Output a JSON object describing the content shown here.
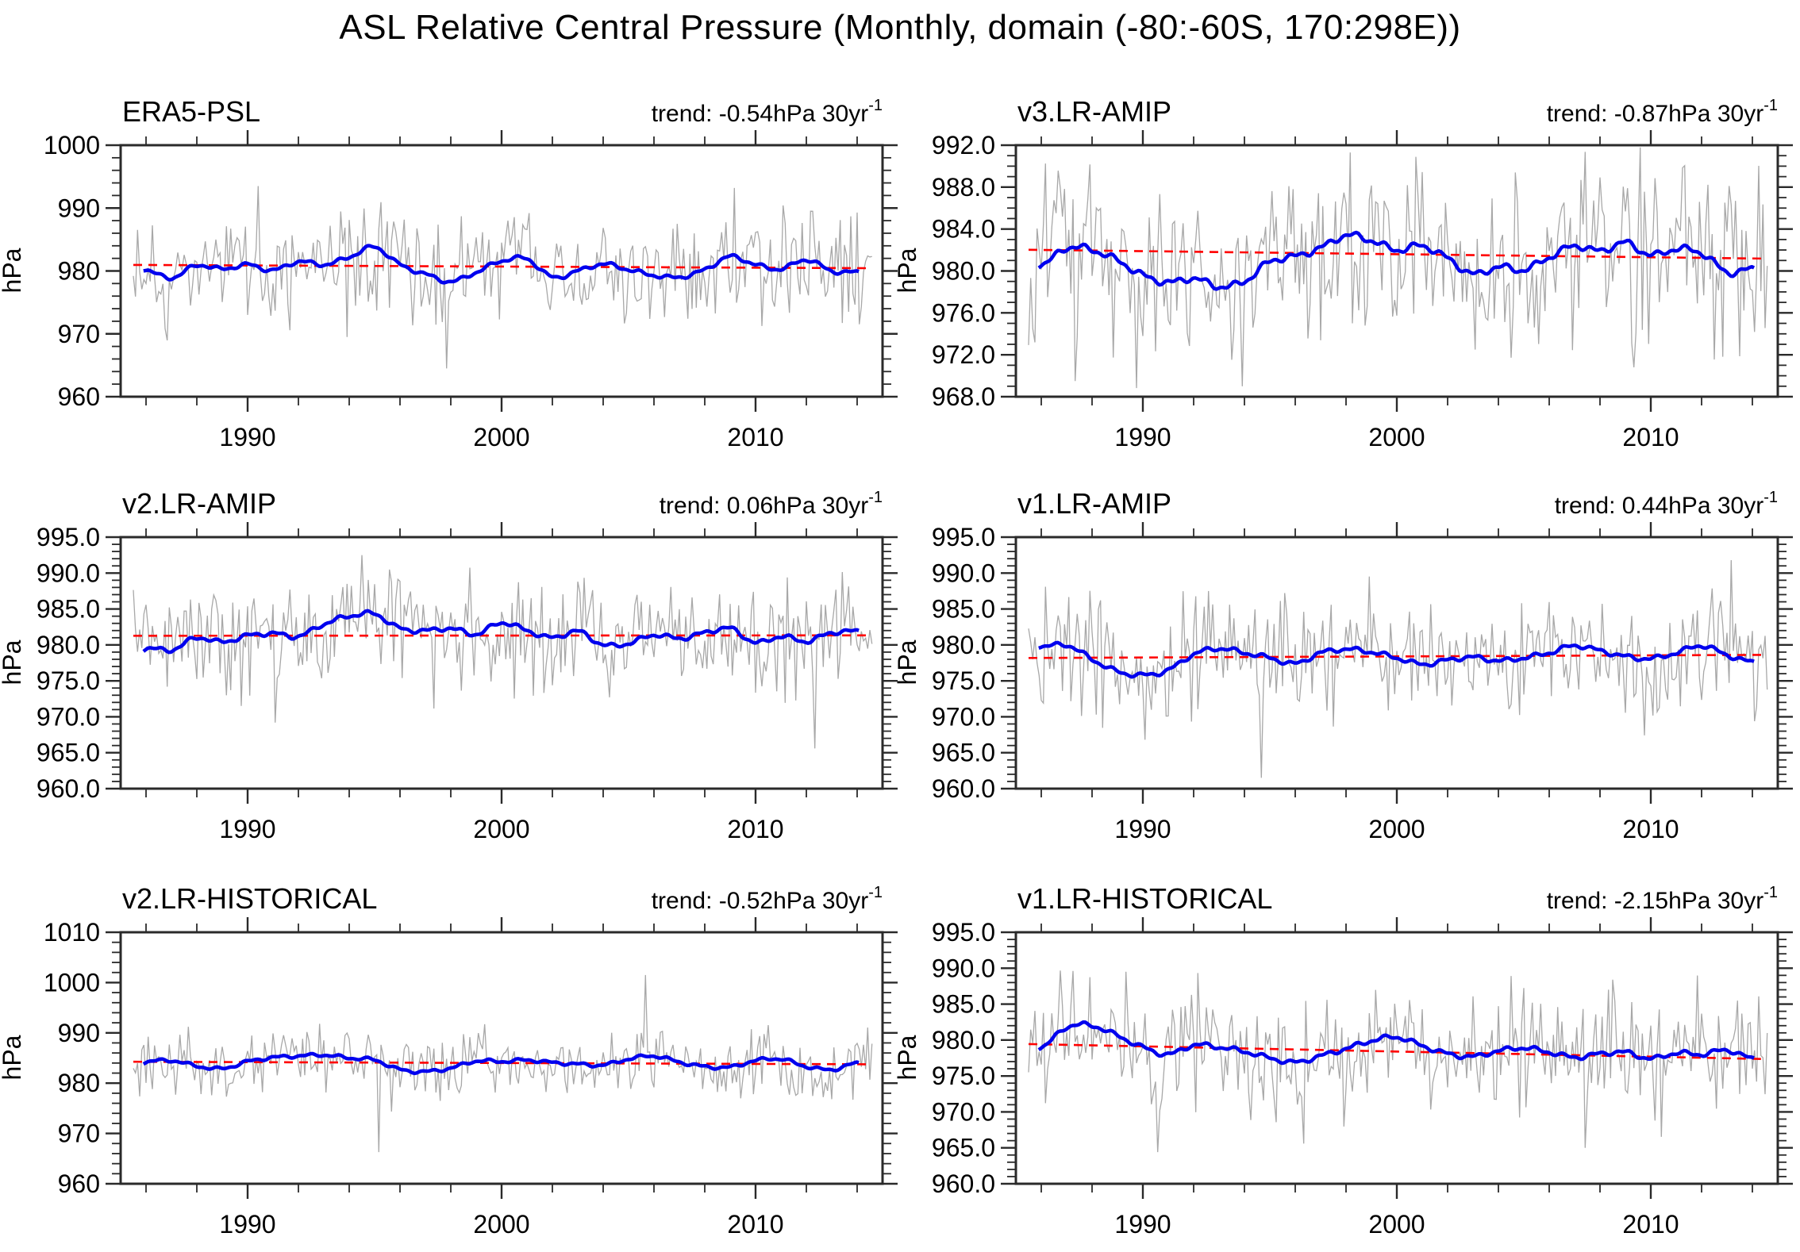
{
  "page": {
    "title": "ASL Relative Central Pressure (Monthly, domain (-80:-60S, 170:298E))"
  },
  "style": {
    "background": "#ffffff",
    "text_color": "#000000",
    "frame_color": "#2a2a2a",
    "monthly_color": "#a8a8a8",
    "smoothed_color": "#0000ee",
    "trendline_color": "#ff0000"
  },
  "chart_data": [
    {
      "type": "line",
      "title": "ERA5-PSL",
      "trend_text": "trend: -0.54hPa 30yr",
      "trend_exp": "-1",
      "trend_hpa_per_30yr": -0.54,
      "ylabel": "hPa",
      "xlabel": "",
      "grid": false,
      "legend_position": "none",
      "xlim": [
        1985,
        2015
      ],
      "xtick_vals": [
        1990,
        2000,
        2010
      ],
      "xtick_labels": [
        "1990",
        "2000",
        "2010"
      ],
      "xtick_minor_step": 2,
      "ylim": [
        960,
        1000
      ],
      "ytick_vals": [
        960,
        970,
        980,
        990,
        1000
      ],
      "ytick_labels": [
        "960",
        "970",
        "980",
        "990",
        "1000"
      ],
      "ytick_minor_step": 2,
      "series": {
        "monthly": {
          "name": "monthly central pressure",
          "mean": 980.7,
          "std": 4.6,
          "seed": 11,
          "start": 1985.5,
          "end": 2014.6,
          "outliers": [
            [
              1990.4,
              993.5
            ],
            [
              1997.8,
              964.5
            ],
            [
              2009.2,
              993.2
            ]
          ]
        },
        "smoothed": {
          "name": "12-month running mean",
          "years_start": 1985,
          "start": 1985.9,
          "end": 2014.1,
          "values": [
            981.4,
            980.2,
            978.9,
            980.9,
            980.3,
            981.0,
            980.1,
            981.5,
            981.0,
            982.2,
            983.8,
            981.0,
            979.5,
            978.3,
            979.8,
            981.6,
            981.9,
            979.0,
            980.0,
            981.1,
            980.2,
            979.3,
            979.0,
            980.2,
            982.3,
            981.0,
            980.3,
            981.8,
            980.0,
            979.8
          ]
        },
        "trendline": {
          "name": "linear trend",
          "dashed": true,
          "value_at_2000": 980.7,
          "slope_hpa_per_30yr": -0.54,
          "start": 1985.5,
          "end": 2014.4
        }
      }
    },
    {
      "type": "line",
      "title": "v3.LR-AMIP",
      "trend_text": "trend: -0.87hPa 30yr",
      "trend_exp": "-1",
      "trend_hpa_per_30yr": -0.87,
      "ylabel": "hPa",
      "xlabel": "",
      "grid": false,
      "legend_position": "none",
      "xlim": [
        1985,
        2015
      ],
      "xtick_vals": [
        1990,
        2000,
        2010
      ],
      "xtick_labels": [
        "1990",
        "2000",
        "2010"
      ],
      "xtick_minor_step": 2,
      "ylim": [
        968,
        992
      ],
      "ytick_vals": [
        968,
        972,
        976,
        980,
        984,
        988,
        992
      ],
      "ytick_labels": [
        "968.0",
        "972.0",
        "976.0",
        "980.0",
        "984.0",
        "988.0",
        "992.0"
      ],
      "ytick_minor_step": 1,
      "series": {
        "monthly": {
          "name": "monthly central pressure",
          "mean": 981.6,
          "std": 4.2,
          "seed": 22,
          "start": 1985.5,
          "end": 2014.6,
          "outliers": [
            [
              1987.3,
              969.5
            ],
            [
              1993.9,
              969.0
            ],
            [
              1998.2,
              991.3
            ],
            [
              2009.3,
              970.8
            ]
          ]
        },
        "smoothed": {
          "name": "12-month running mean",
          "years_start": 1985,
          "start": 1985.9,
          "end": 2014.1,
          "values": [
            981.9,
            980.6,
            982.2,
            982.0,
            981.0,
            979.6,
            978.9,
            979.3,
            978.5,
            979.0,
            980.9,
            981.4,
            982.2,
            983.4,
            982.9,
            982.0,
            982.4,
            981.2,
            979.7,
            980.4,
            980.1,
            981.3,
            982.4,
            981.9,
            982.7,
            981.5,
            982.1,
            981.7,
            979.9,
            980.2
          ]
        },
        "trendline": {
          "name": "linear trend",
          "dashed": true,
          "value_at_2000": 981.6,
          "slope_hpa_per_30yr": -0.87,
          "start": 1985.5,
          "end": 2014.4
        }
      }
    },
    {
      "type": "line",
      "title": "v2.LR-AMIP",
      "trend_text": "trend: 0.06hPa 30yr",
      "trend_exp": "-1",
      "trend_hpa_per_30yr": 0.06,
      "ylabel": "hPa",
      "xlabel": "",
      "grid": false,
      "legend_position": "none",
      "xlim": [
        1985,
        2015
      ],
      "xtick_vals": [
        1990,
        2000,
        2010
      ],
      "xtick_labels": [
        "1990",
        "2000",
        "2010"
      ],
      "xtick_minor_step": 2,
      "ylim": [
        960,
        995
      ],
      "ytick_vals": [
        960,
        965,
        970,
        975,
        980,
        985,
        990,
        995
      ],
      "ytick_labels": [
        "960.0",
        "965.0",
        "970.0",
        "975.0",
        "980.0",
        "985.0",
        "990.0",
        "995.0"
      ],
      "ytick_minor_step": 1,
      "series": {
        "monthly": {
          "name": "monthly central pressure",
          "mean": 981.3,
          "std": 3.9,
          "seed": 33,
          "start": 1985.5,
          "end": 2014.6,
          "outliers": [
            [
              1991.1,
              969.2
            ],
            [
              1994.5,
              992.5
            ],
            [
              2012.3,
              965.6
            ]
          ]
        },
        "smoothed": {
          "name": "12-month running mean",
          "years_start": 1985,
          "start": 1985.9,
          "end": 2014.1,
          "values": [
            978.2,
            979.5,
            979.3,
            981.0,
            980.4,
            981.3,
            981.6,
            981.2,
            982.9,
            984.0,
            984.3,
            982.3,
            982.0,
            982.3,
            981.5,
            983.1,
            982.0,
            981.0,
            981.9,
            980.0,
            980.2,
            981.4,
            980.9,
            981.7,
            982.3,
            980.3,
            981.2,
            980.5,
            981.7,
            981.9
          ]
        },
        "trendline": {
          "name": "linear trend",
          "dashed": true,
          "value_at_2000": 981.3,
          "slope_hpa_per_30yr": 0.06,
          "start": 1985.5,
          "end": 2014.4
        }
      }
    },
    {
      "type": "line",
      "title": "v1.LR-AMIP",
      "trend_text": "trend: 0.44hPa 30yr",
      "trend_exp": "-1",
      "trend_hpa_per_30yr": 0.44,
      "ylabel": "hPa",
      "xlabel": "",
      "grid": false,
      "legend_position": "none",
      "xlim": [
        1985,
        2015
      ],
      "xtick_vals": [
        1990,
        2000,
        2010
      ],
      "xtick_labels": [
        "1990",
        "2000",
        "2010"
      ],
      "xtick_minor_step": 2,
      "ylim": [
        960,
        995
      ],
      "ytick_vals": [
        960,
        965,
        970,
        975,
        980,
        985,
        990,
        995
      ],
      "ytick_labels": [
        "960.0",
        "965.0",
        "970.0",
        "975.0",
        "980.0",
        "985.0",
        "990.0",
        "995.0"
      ],
      "ytick_minor_step": 1,
      "series": {
        "monthly": {
          "name": "monthly central pressure",
          "mean": 978.4,
          "std": 4.1,
          "seed": 44,
          "start": 1985.5,
          "end": 2014.6,
          "outliers": [
            [
              1990.1,
              966.8
            ],
            [
              1994.7,
              961.5
            ],
            [
              1992.6,
              987.5
            ],
            [
              2013.2,
              991.8
            ]
          ]
        },
        "smoothed": {
          "name": "12-month running mean",
          "years_start": 1985,
          "start": 1985.9,
          "end": 2014.1,
          "values": [
            981.0,
            979.8,
            980.0,
            978.0,
            976.3,
            975.8,
            976.5,
            978.7,
            979.5,
            978.9,
            978.2,
            977.4,
            978.9,
            979.4,
            979.0,
            978.2,
            977.3,
            977.9,
            978.3,
            977.8,
            978.2,
            978.9,
            979.9,
            979.2,
            978.4,
            978.1,
            978.9,
            979.9,
            978.6,
            977.6
          ]
        },
        "trendline": {
          "name": "linear trend",
          "dashed": true,
          "value_at_2000": 978.4,
          "slope_hpa_per_30yr": 0.44,
          "start": 1985.5,
          "end": 2014.4
        }
      }
    },
    {
      "type": "line",
      "title": "v2.LR-HISTORICAL",
      "trend_text": "trend: -0.52hPa 30yr",
      "trend_exp": "-1",
      "trend_hpa_per_30yr": -0.52,
      "ylabel": "hPa",
      "xlabel": "",
      "grid": false,
      "legend_position": "none",
      "xlim": [
        1985,
        2015
      ],
      "xtick_vals": [
        1990,
        2000,
        2010
      ],
      "xtick_labels": [
        "1990",
        "2000",
        "2010"
      ],
      "xtick_minor_step": 2,
      "ylim": [
        960,
        1010
      ],
      "ytick_vals": [
        960,
        970,
        980,
        990,
        1000,
        1010
      ],
      "ytick_labels": [
        "960",
        "970",
        "980",
        "990",
        "1000",
        "1010"
      ],
      "ytick_minor_step": 2,
      "series": {
        "monthly": {
          "name": "monthly central pressure",
          "mean": 984.0,
          "std": 3.2,
          "seed": 55,
          "start": 1985.5,
          "end": 2014.6,
          "outliers": [
            [
              1992.8,
              991.8
            ],
            [
              1995.2,
              966.3
            ],
            [
              2005.7,
              1001.5
            ]
          ]
        },
        "smoothed": {
          "name": "12-month running mean",
          "years_start": 1985,
          "start": 1985.9,
          "end": 2014.1,
          "values": [
            983.2,
            984.2,
            984.5,
            983.4,
            982.9,
            984.3,
            985.1,
            985.4,
            985.6,
            985.0,
            984.6,
            982.7,
            982.3,
            983.0,
            984.4,
            984.3,
            984.6,
            984.1,
            983.8,
            983.6,
            984.8,
            985.4,
            984.2,
            983.3,
            983.2,
            984.5,
            984.8,
            983.3,
            982.7,
            984.0
          ]
        },
        "trendline": {
          "name": "linear trend",
          "dashed": true,
          "value_at_2000": 984.0,
          "slope_hpa_per_30yr": -0.52,
          "start": 1985.5,
          "end": 2014.4
        }
      }
    },
    {
      "type": "line",
      "title": "v1.LR-HISTORICAL",
      "trend_text": "trend: -2.15hPa 30yr",
      "trend_exp": "-1",
      "trend_hpa_per_30yr": -2.15,
      "ylabel": "hPa",
      "xlabel": "",
      "grid": false,
      "legend_position": "none",
      "xlim": [
        1985,
        2015
      ],
      "xtick_vals": [
        1990,
        2000,
        2010
      ],
      "xtick_labels": [
        "1990",
        "2000",
        "2010"
      ],
      "xtick_minor_step": 2,
      "ylim": [
        960,
        995
      ],
      "ytick_vals": [
        960,
        965,
        970,
        975,
        980,
        985,
        990,
        995
      ],
      "ytick_labels": [
        "960.0",
        "965.0",
        "970.0",
        "975.0",
        "980.0",
        "985.0",
        "990.0",
        "995.0"
      ],
      "ytick_minor_step": 1,
      "series": {
        "monthly": {
          "name": "monthly central pressure",
          "mean": 978.4,
          "std": 4.3,
          "seed": 66,
          "start": 1985.5,
          "end": 2014.6,
          "outliers": [
            [
              1990.6,
              964.4
            ],
            [
              2007.4,
              965.0
            ],
            [
              1989.3,
              989.5
            ]
          ]
        },
        "smoothed": {
          "name": "12-month running mean",
          "years_start": 1985,
          "start": 1985.9,
          "end": 2014.1,
          "values": [
            980.3,
            979.0,
            981.8,
            982.0,
            980.6,
            979.0,
            978.0,
            979.3,
            979.0,
            978.4,
            977.5,
            976.9,
            977.8,
            978.8,
            979.9,
            980.4,
            979.2,
            978.1,
            977.7,
            978.5,
            978.9,
            978.3,
            977.6,
            978.1,
            978.3,
            977.4,
            978.2,
            978.0,
            978.6,
            977.4
          ]
        },
        "trendline": {
          "name": "linear trend",
          "dashed": true,
          "value_at_2000": 978.4,
          "slope_hpa_per_30yr": -2.15,
          "start": 1985.5,
          "end": 2014.4
        }
      }
    }
  ]
}
